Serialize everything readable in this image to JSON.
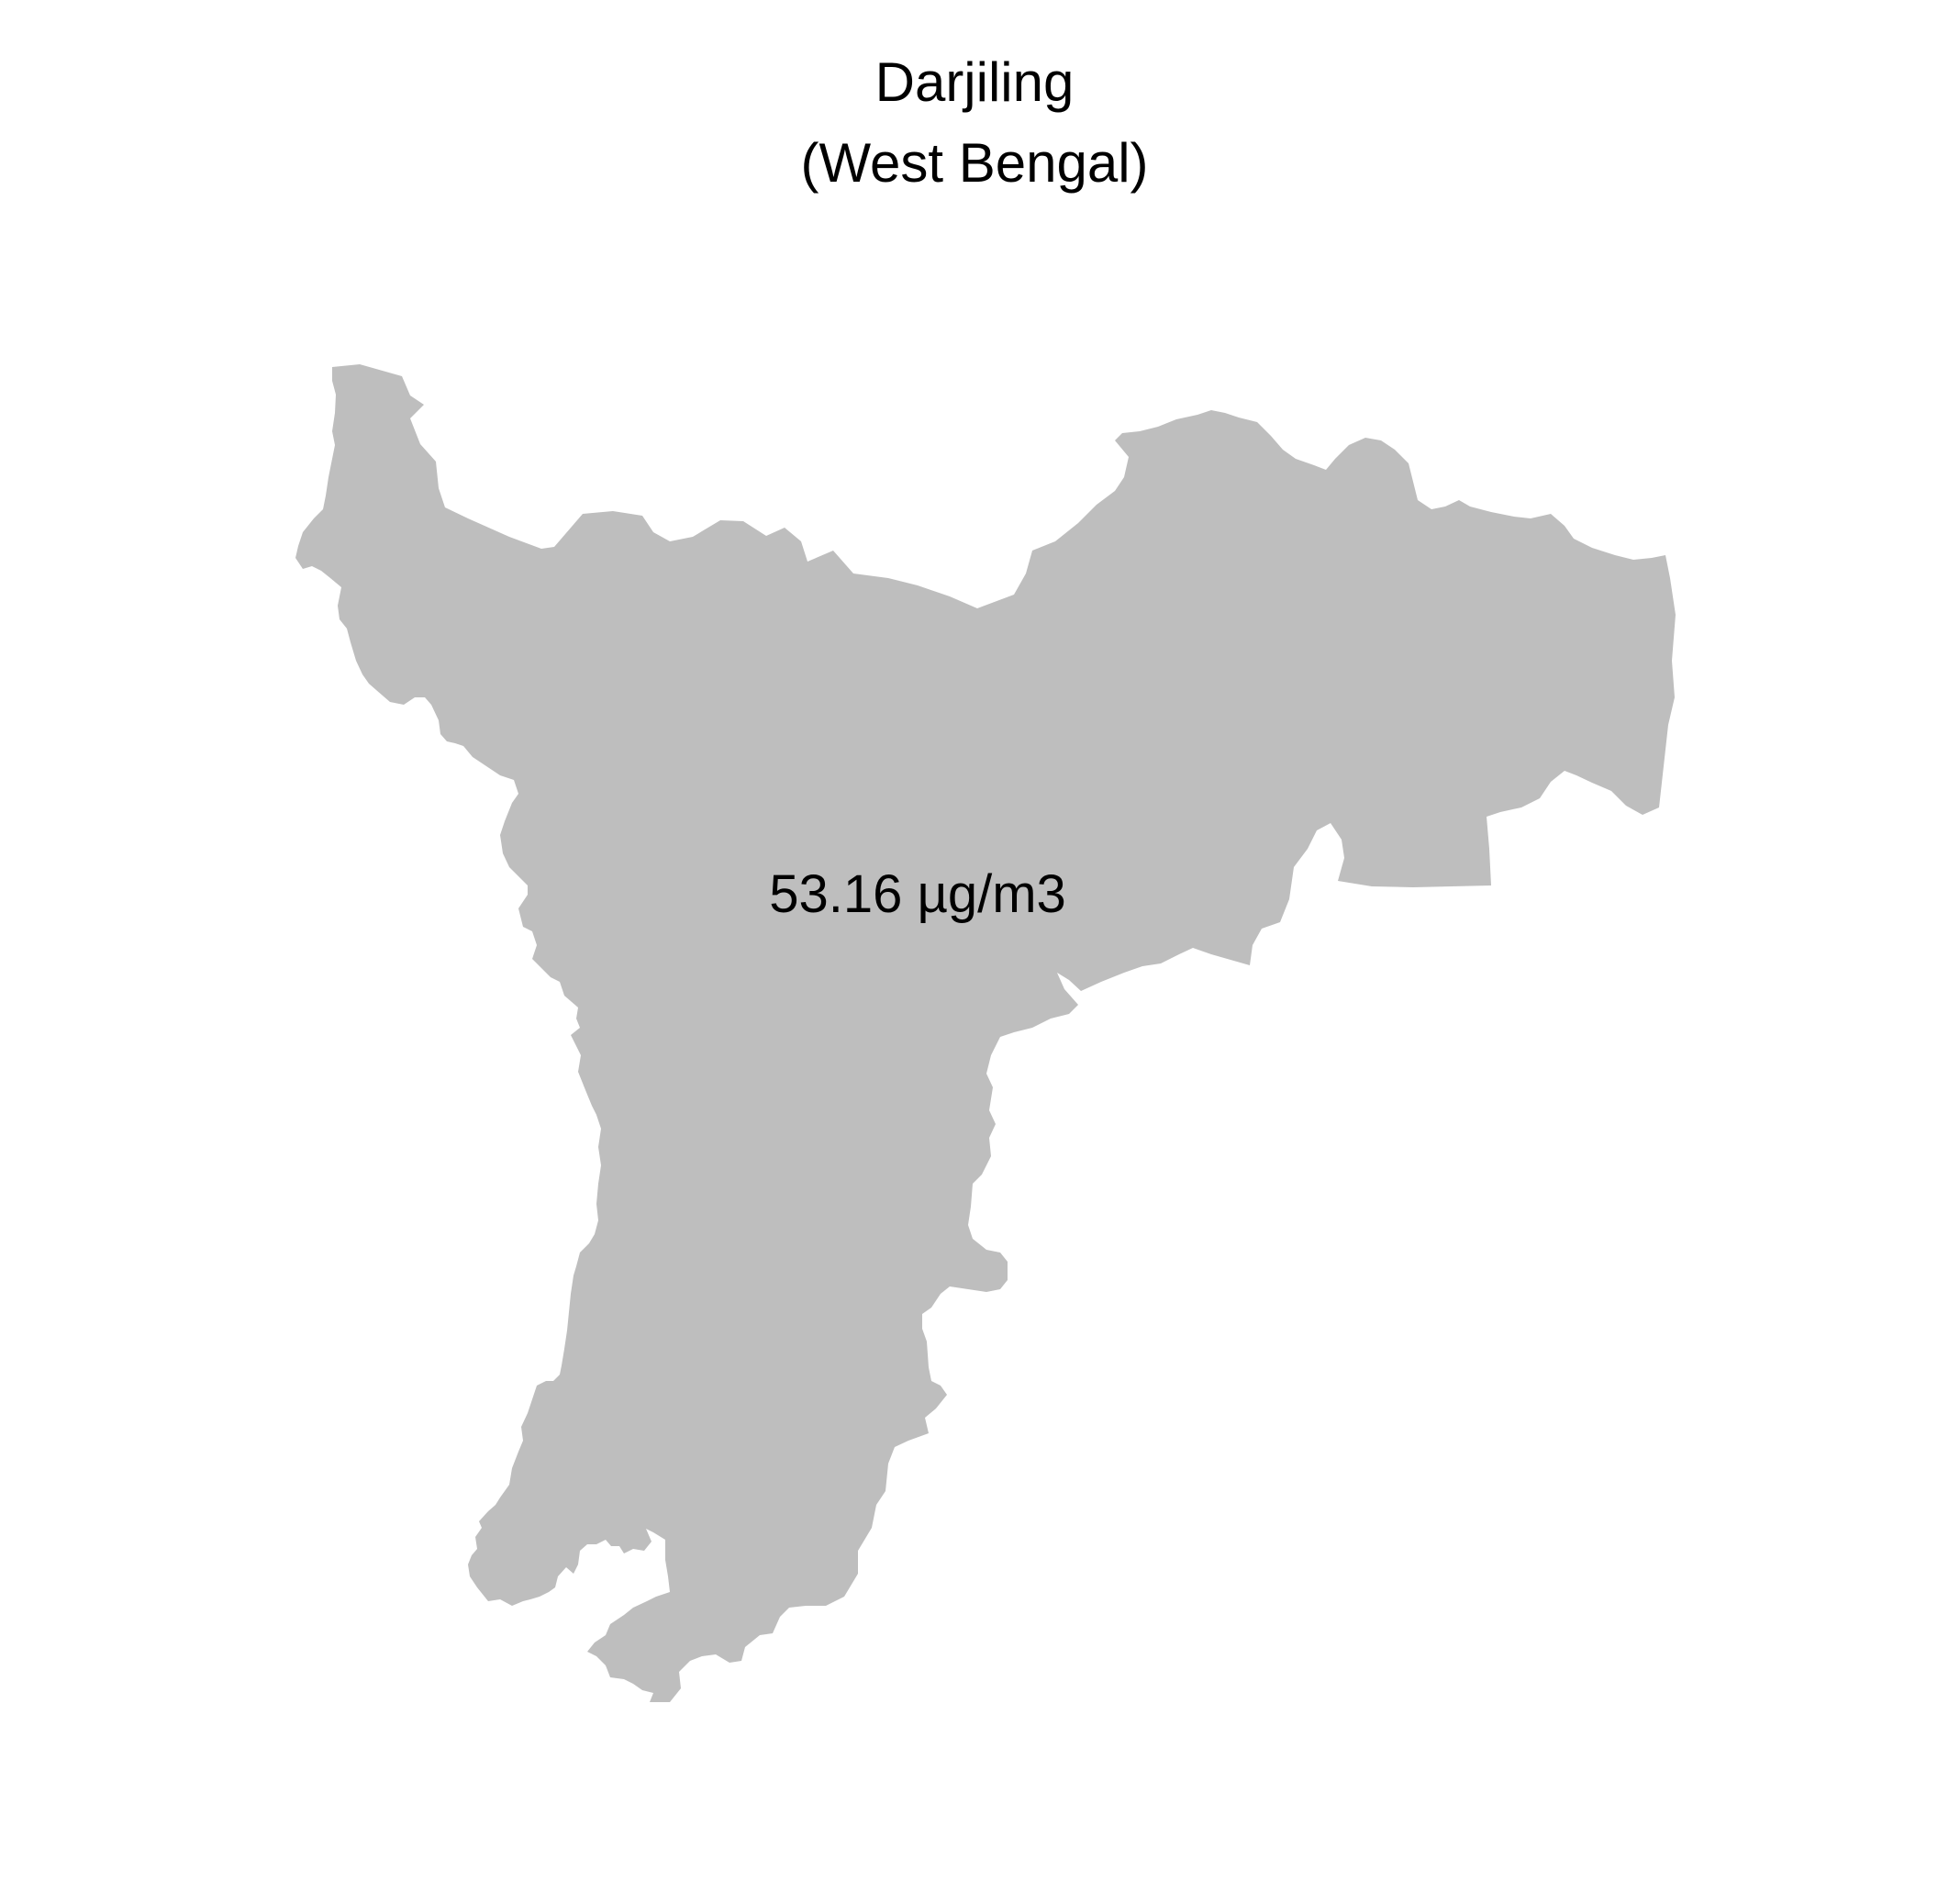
{
  "title": {
    "district": "Darjiling",
    "state": "(West Bengal)"
  },
  "region": {
    "name": "Darjiling",
    "value_label": "53.16 µg/m3",
    "fill_color": "#BEBEBE"
  },
  "background_color": "#FFFFFF"
}
